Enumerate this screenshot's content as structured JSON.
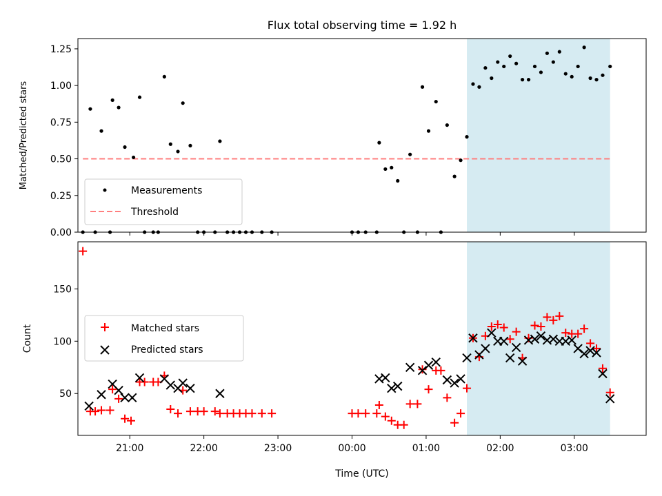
{
  "chart_data": [
    {
      "type": "scatter",
      "title": "Flux total observing time = 1.92 h",
      "xlabel": "",
      "ylabel": "Matched/Predicted stars",
      "ylim": [
        0,
        1.32
      ],
      "yticks": [
        "0.00",
        "0.25",
        "0.50",
        "0.75",
        "1.00",
        "1.25"
      ],
      "grid": false,
      "legend_position": "lower-left",
      "shaded_span": {
        "from": "01:33",
        "to": "03:29",
        "color": "#add8e6"
      },
      "threshold": {
        "name": "Threshold",
        "value": 0.5,
        "color": "#ff7f7f"
      },
      "series": [
        {
          "name": "Measurements",
          "color": "#000000",
          "points": [
            [
              "20:22",
              0.0
            ],
            [
              "20:28",
              0.84
            ],
            [
              "20:32",
              0.0
            ],
            [
              "20:37",
              0.69
            ],
            [
              "20:44",
              0.0
            ],
            [
              "20:46",
              0.9
            ],
            [
              "20:51",
              0.85
            ],
            [
              "20:56",
              0.58
            ],
            [
              "21:03",
              0.51
            ],
            [
              "21:08",
              0.92
            ],
            [
              "21:12",
              0.0
            ],
            [
              "21:19",
              0.0
            ],
            [
              "21:23",
              0.0
            ],
            [
              "21:28",
              1.06
            ],
            [
              "21:33",
              0.6
            ],
            [
              "21:39",
              0.55
            ],
            [
              "21:43",
              0.88
            ],
            [
              "21:49",
              0.59
            ],
            [
              "21:55",
              0.0
            ],
            [
              "22:00",
              0.0
            ],
            [
              "22:09",
              0.0
            ],
            [
              "22:13",
              0.62
            ],
            [
              "22:19",
              0.0
            ],
            [
              "22:24",
              0.0
            ],
            [
              "22:29",
              0.0
            ],
            [
              "22:34",
              0.0
            ],
            [
              "22:39",
              0.0
            ],
            [
              "22:47",
              0.0
            ],
            [
              "22:55",
              0.0
            ],
            [
              "00:00",
              0.0
            ],
            [
              "00:05",
              0.0
            ],
            [
              "00:11",
              0.0
            ],
            [
              "00:20",
              0.0
            ],
            [
              "00:22",
              0.61
            ],
            [
              "00:27",
              0.43
            ],
            [
              "00:32",
              0.44
            ],
            [
              "00:37",
              0.35
            ],
            [
              "00:42",
              0.0
            ],
            [
              "00:47",
              0.53
            ],
            [
              "00:53",
              0.0
            ],
            [
              "00:57",
              0.99
            ],
            [
              "01:02",
              0.69
            ],
            [
              "01:08",
              0.89
            ],
            [
              "01:12",
              0.0
            ],
            [
              "01:17",
              0.73
            ],
            [
              "01:23",
              0.38
            ],
            [
              "01:28",
              0.49
            ],
            [
              "01:33",
              0.65
            ],
            [
              "01:38",
              1.01
            ],
            [
              "01:43",
              0.99
            ],
            [
              "01:48",
              1.12
            ],
            [
              "01:53",
              1.05
            ],
            [
              "01:58",
              1.16
            ],
            [
              "02:03",
              1.13
            ],
            [
              "02:08",
              1.2
            ],
            [
              "02:13",
              1.15
            ],
            [
              "02:18",
              1.04
            ],
            [
              "02:23",
              1.04
            ],
            [
              "02:28",
              1.13
            ],
            [
              "02:33",
              1.09
            ],
            [
              "02:38",
              1.22
            ],
            [
              "02:43",
              1.16
            ],
            [
              "02:48",
              1.23
            ],
            [
              "02:53",
              1.08
            ],
            [
              "02:58",
              1.06
            ],
            [
              "03:03",
              1.13
            ],
            [
              "03:08",
              1.26
            ],
            [
              "03:13",
              1.05
            ],
            [
              "03:18",
              1.04
            ],
            [
              "03:23",
              1.07
            ],
            [
              "03:29",
              1.13
            ]
          ]
        }
      ]
    },
    {
      "type": "scatter",
      "title": "",
      "xlabel": "Time (UTC)",
      "ylabel": "Count",
      "xticks": [
        "21:00",
        "22:00",
        "23:00",
        "00:00",
        "01:00",
        "02:00",
        "03:00"
      ],
      "ylim": [
        10,
        195
      ],
      "yticks": [
        "50",
        "100",
        "150"
      ],
      "grid": false,
      "legend_position": "center-left",
      "shaded_span": {
        "from": "01:33",
        "to": "03:29",
        "color": "#add8e6"
      },
      "series": [
        {
          "name": "Matched stars",
          "marker": "plus",
          "color": "#ff0000",
          "points": [
            [
              "20:22",
              186
            ],
            [
              "20:28",
              33
            ],
            [
              "20:32",
              33
            ],
            [
              "20:37",
              34
            ],
            [
              "20:44",
              34
            ],
            [
              "20:46",
              54
            ],
            [
              "20:51",
              45
            ],
            [
              "20:56",
              26
            ],
            [
              "21:01",
              24
            ],
            [
              "21:08",
              61
            ],
            [
              "21:12",
              61
            ],
            [
              "21:19",
              61
            ],
            [
              "21:23",
              61
            ],
            [
              "21:28",
              67
            ],
            [
              "21:33",
              35
            ],
            [
              "21:39",
              31
            ],
            [
              "21:43",
              53
            ],
            [
              "21:49",
              33
            ],
            [
              "21:55",
              33
            ],
            [
              "22:00",
              33
            ],
            [
              "22:09",
              33
            ],
            [
              "22:13",
              31
            ],
            [
              "22:19",
              31
            ],
            [
              "22:24",
              31
            ],
            [
              "22:29",
              31
            ],
            [
              "22:34",
              31
            ],
            [
              "22:39",
              31
            ],
            [
              "22:47",
              31
            ],
            [
              "22:55",
              31
            ],
            [
              "00:00",
              31
            ],
            [
              "00:05",
              31
            ],
            [
              "00:11",
              31
            ],
            [
              "00:20",
              31
            ],
            [
              "00:22",
              39
            ],
            [
              "00:27",
              28
            ],
            [
              "00:32",
              24
            ],
            [
              "00:37",
              20
            ],
            [
              "00:42",
              20
            ],
            [
              "00:47",
              40
            ],
            [
              "00:53",
              40
            ],
            [
              "00:57",
              73
            ],
            [
              "01:02",
              54
            ],
            [
              "01:08",
              72
            ],
            [
              "01:12",
              72
            ],
            [
              "01:17",
              46
            ],
            [
              "01:23",
              22
            ],
            [
              "01:28",
              31
            ],
            [
              "01:33",
              55
            ],
            [
              "01:38",
              103
            ],
            [
              "01:43",
              85
            ],
            [
              "01:48",
              105
            ],
            [
              "01:53",
              114
            ],
            [
              "01:58",
              116
            ],
            [
              "02:03",
              113
            ],
            [
              "02:08",
              102
            ],
            [
              "02:13",
              109
            ],
            [
              "02:18",
              84
            ],
            [
              "02:23",
              103
            ],
            [
              "02:28",
              115
            ],
            [
              "02:33",
              114
            ],
            [
              "02:38",
              123
            ],
            [
              "02:43",
              120
            ],
            [
              "02:48",
              124
            ],
            [
              "02:53",
              108
            ],
            [
              "02:58",
              107
            ],
            [
              "03:03",
              107
            ],
            [
              "03:08",
              112
            ],
            [
              "03:13",
              98
            ],
            [
              "03:18",
              93
            ],
            [
              "03:23",
              74
            ],
            [
              "03:29",
              51
            ]
          ]
        },
        {
          "name": "Predicted stars",
          "marker": "x",
          "color": "#000000",
          "points": [
            [
              "20:27",
              38
            ],
            [
              "20:37",
              49
            ],
            [
              "20:46",
              59
            ],
            [
              "20:51",
              53
            ],
            [
              "20:56",
              46
            ],
            [
              "21:02",
              46
            ],
            [
              "21:08",
              65
            ],
            [
              "21:28",
              64
            ],
            [
              "21:33",
              58
            ],
            [
              "21:39",
              55
            ],
            [
              "21:43",
              60
            ],
            [
              "21:49",
              55
            ],
            [
              "22:13",
              50
            ],
            [
              "00:22",
              64
            ],
            [
              "00:27",
              65
            ],
            [
              "00:32",
              55
            ],
            [
              "00:37",
              57
            ],
            [
              "00:47",
              75
            ],
            [
              "00:57",
              72
            ],
            [
              "01:02",
              77
            ],
            [
              "01:08",
              80
            ],
            [
              "01:17",
              63
            ],
            [
              "01:23",
              60
            ],
            [
              "01:28",
              64
            ],
            [
              "01:33",
              84
            ],
            [
              "01:38",
              103
            ],
            [
              "01:43",
              87
            ],
            [
              "01:48",
              93
            ],
            [
              "01:53",
              108
            ],
            [
              "01:58",
              100
            ],
            [
              "02:03",
              100
            ],
            [
              "02:08",
              84
            ],
            [
              "02:13",
              94
            ],
            [
              "02:18",
              81
            ],
            [
              "02:23",
              101
            ],
            [
              "02:28",
              102
            ],
            [
              "02:33",
              105
            ],
            [
              "02:38",
              101
            ],
            [
              "02:43",
              102
            ],
            [
              "02:48",
              100
            ],
            [
              "02:53",
              100
            ],
            [
              "02:58",
              101
            ],
            [
              "03:03",
              93
            ],
            [
              "03:08",
              88
            ],
            [
              "03:13",
              91
            ],
            [
              "03:18",
              89
            ],
            [
              "03:23",
              69
            ],
            [
              "03:29",
              45
            ]
          ]
        }
      ]
    }
  ]
}
